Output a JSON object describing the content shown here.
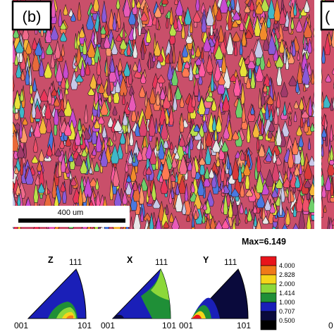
{
  "panel": {
    "label": "(b)",
    "next_label": "(",
    "scale_bar_text": "400 um"
  },
  "pole_figures": {
    "max_text": "Max=6.149",
    "figures": [
      {
        "axis": "Z",
        "corner_top": "111",
        "corner_left": "001",
        "corner_right": "101"
      },
      {
        "axis": "X",
        "corner_top": "111",
        "corner_left": "001",
        "corner_right": "101"
      },
      {
        "axis": "Y",
        "corner_top": "111",
        "corner_left": "001",
        "corner_right": "101"
      }
    ],
    "next_corner": "0"
  },
  "colorbar": {
    "levels": [
      "4.000",
      "2.828",
      "2.000",
      "1.414",
      "1.000",
      "0.707",
      "0.500"
    ],
    "colors": [
      "#e8141b",
      "#f07a18",
      "#f5d51a",
      "#8cd83a",
      "#1f8f37",
      "#1a1fb8",
      "#0a0a3c",
      "#000000"
    ]
  }
}
